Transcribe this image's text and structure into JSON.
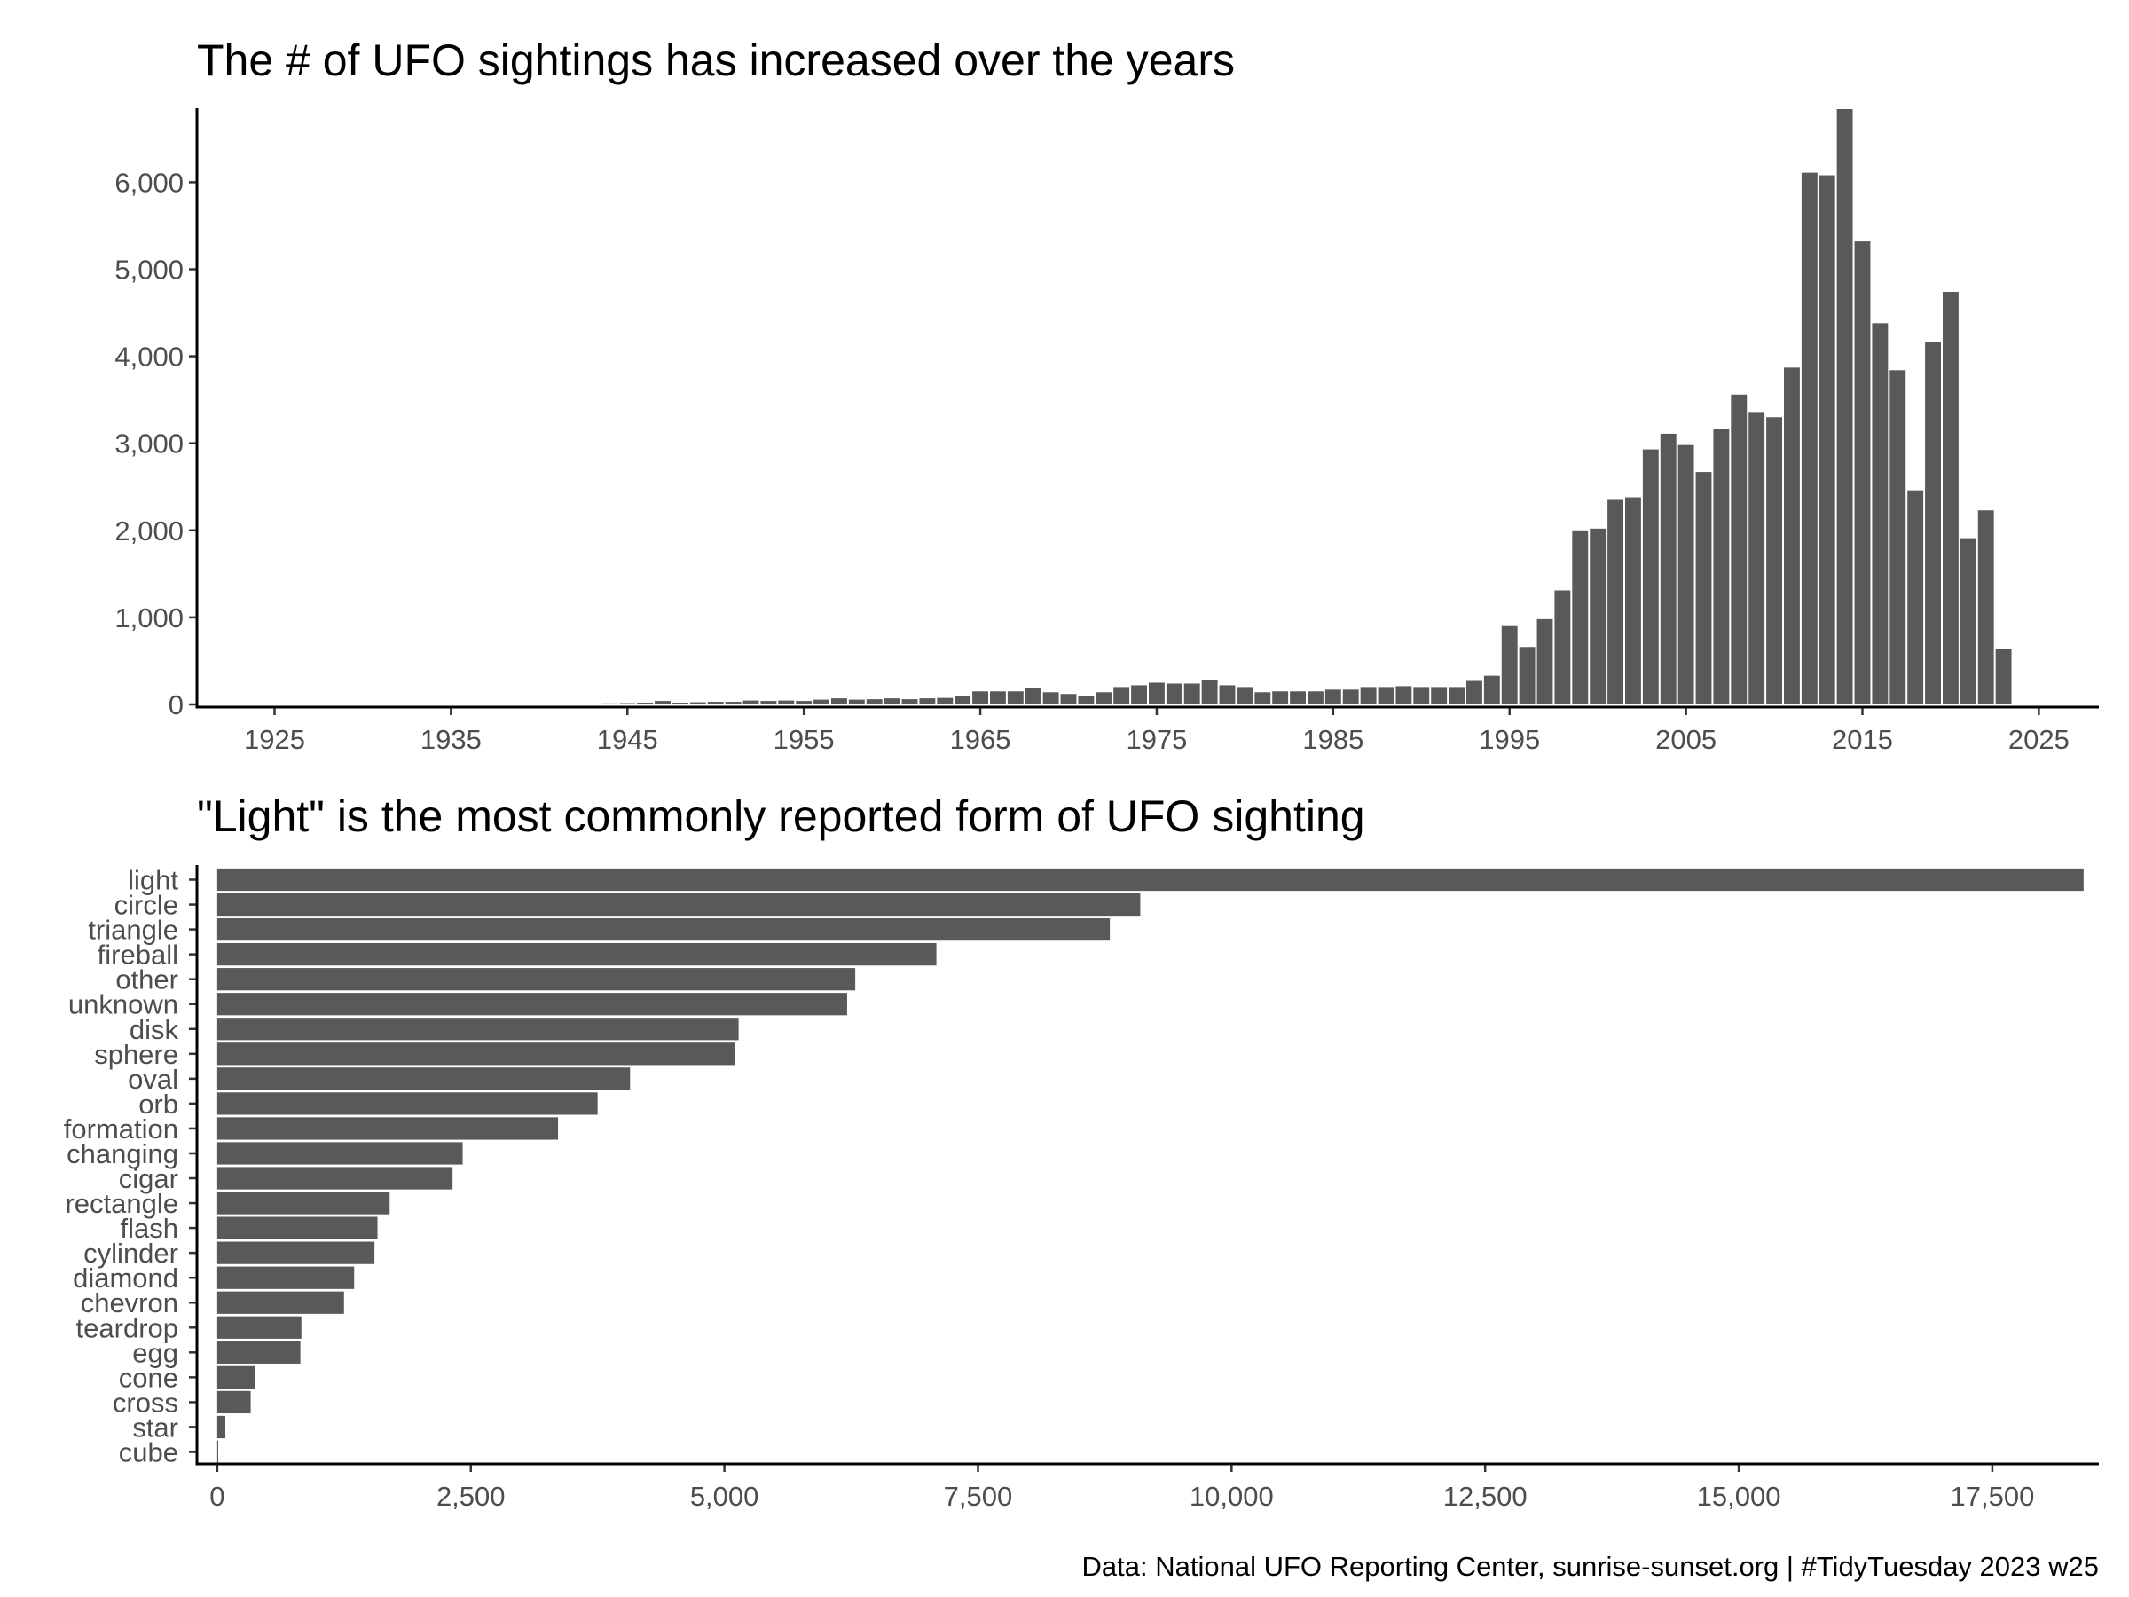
{
  "chart_data": [
    {
      "type": "bar",
      "title": "The # of UFO sightings has increased over the years",
      "xlabel": "",
      "ylabel": "",
      "x_ticks": [
        "1925",
        "1935",
        "1945",
        "1955",
        "1965",
        "1975",
        "1985",
        "1995",
        "2005",
        "2015",
        "2025"
      ],
      "y_ticks": [
        "0",
        "1,000",
        "2,000",
        "3,000",
        "4,000",
        "5,000",
        "6,000"
      ],
      "xlim": [
        1920.6,
        2028.4
      ],
      "ylim": [
        0,
        6850
      ],
      "bar_color": "#595959",
      "grid": false,
      "x": [
        1925,
        1926,
        1927,
        1928,
        1929,
        1930,
        1931,
        1932,
        1933,
        1934,
        1935,
        1936,
        1937,
        1938,
        1939,
        1940,
        1941,
        1942,
        1943,
        1944,
        1945,
        1946,
        1947,
        1948,
        1949,
        1950,
        1951,
        1952,
        1953,
        1954,
        1955,
        1956,
        1957,
        1958,
        1959,
        1960,
        1961,
        1962,
        1963,
        1964,
        1965,
        1966,
        1967,
        1968,
        1969,
        1970,
        1971,
        1972,
        1973,
        1974,
        1975,
        1976,
        1977,
        1978,
        1979,
        1980,
        1981,
        1982,
        1983,
        1984,
        1985,
        1986,
        1987,
        1988,
        1989,
        1990,
        1991,
        1992,
        1993,
        1994,
        1995,
        1996,
        1997,
        1998,
        1999,
        2000,
        2001,
        2002,
        2003,
        2004,
        2005,
        2006,
        2007,
        2008,
        2009,
        2010,
        2011,
        2012,
        2013,
        2014,
        2015,
        2016,
        2017,
        2018,
        2019,
        2020,
        2021,
        2022,
        2023
      ],
      "values": [
        2,
        2,
        2,
        3,
        5,
        4,
        5,
        5,
        4,
        5,
        6,
        6,
        7,
        8,
        8,
        8,
        9,
        9,
        10,
        12,
        15,
        20,
        40,
        20,
        25,
        30,
        30,
        45,
        40,
        45,
        40,
        55,
        70,
        55,
        60,
        70,
        60,
        70,
        75,
        100,
        150,
        150,
        150,
        190,
        140,
        120,
        100,
        140,
        200,
        220,
        250,
        240,
        240,
        280,
        220,
        200,
        140,
        150,
        150,
        150,
        170,
        170,
        200,
        200,
        210,
        200,
        200,
        200,
        270,
        330,
        900,
        660,
        980,
        1310,
        2000,
        2020,
        2360,
        2380,
        2930,
        3110,
        2980,
        2670,
        3160,
        3560,
        3360,
        3300,
        3870,
        6110,
        6080,
        6840,
        5320,
        4380,
        3840,
        2460,
        4160,
        4740,
        1910,
        2230,
        640
      ]
    },
    {
      "type": "bar",
      "orientation": "horizontal",
      "title": "\"Light\" is the most commonly reported form of UFO sighting",
      "xlabel": "",
      "ylabel": "",
      "categories": [
        "light",
        "circle",
        "triangle",
        "fireball",
        "other",
        "unknown",
        "disk",
        "sphere",
        "oval",
        "orb",
        "formation",
        "changing",
        "cigar",
        "rectangle",
        "flash",
        "cylinder",
        "diamond",
        "chevron",
        "teardrop",
        "egg",
        "cone",
        "cross",
        "star",
        "cube"
      ],
      "values": [
        18400,
        9100,
        8800,
        7090,
        6290,
        6210,
        5140,
        5100,
        4070,
        3750,
        3360,
        2420,
        2320,
        1700,
        1580,
        1550,
        1350,
        1250,
        830,
        820,
        370,
        330,
        80,
        10
      ],
      "x_ticks": [
        "0",
        "2,500",
        "5,000",
        "7,500",
        "10,000",
        "12,500",
        "15,000",
        "17,500"
      ],
      "xlim": [
        -200,
        18550
      ],
      "bar_color": "#595959",
      "grid": false
    }
  ],
  "caption": "Data: National UFO Reporting Center, sunrise-sunset.org | #TidyTuesday 2023 w25"
}
